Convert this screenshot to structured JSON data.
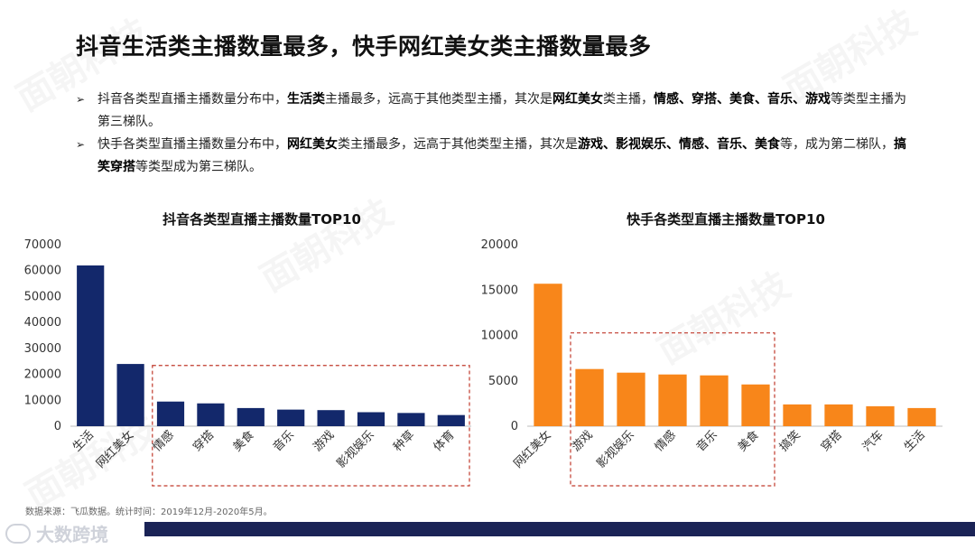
{
  "page": {
    "title": "抖音生活类主播数量最多，快手网红美女类主播数量最多",
    "bullets": [
      [
        {
          "t": "抖音各类型直播主播数量分布中，",
          "b": false
        },
        {
          "t": "生活类",
          "b": true
        },
        {
          "t": "主播最多，远高于其他类型主播，其次是",
          "b": false
        },
        {
          "t": "网红美女",
          "b": true
        },
        {
          "t": "类主播，",
          "b": false
        },
        {
          "t": "情感、穿搭、美食、音乐、游戏",
          "b": true
        },
        {
          "t": "等类型主播为第三梯队。",
          "b": false
        }
      ],
      [
        {
          "t": "快手各类型直播主播数量分布中，",
          "b": false
        },
        {
          "t": "网红美女",
          "b": true
        },
        {
          "t": "类主播最多，远高于其他类型主播，其次是",
          "b": false
        },
        {
          "t": "游戏、影视娱乐、情感、音乐、美食",
          "b": true
        },
        {
          "t": "等，成为第二梯队，",
          "b": false
        },
        {
          "t": "搞笑穿搭",
          "b": true
        },
        {
          "t": "等类型成为第三梯队。",
          "b": false
        }
      ]
    ],
    "bullet_marker": "➢",
    "source": "数据来源：飞瓜数据。统计时间：2019年12月-2020年5月。",
    "logo_text": "大数跨境",
    "watermark": "面朝科技"
  },
  "colors": {
    "douyin_bar": "#13286b",
    "kuaishou_bar": "#f8861a",
    "highlight_box": "#c0392b",
    "footer_bar": "#1a2356"
  },
  "chart_data": [
    {
      "type": "bar",
      "title": "抖音各类型直播主播数量TOP10",
      "categories": [
        "生活",
        "网红美女",
        "情感",
        "穿搭",
        "美食",
        "音乐",
        "游戏",
        "影视娱乐",
        "种草",
        "体育"
      ],
      "values": [
        62000,
        24000,
        9500,
        8800,
        7000,
        6400,
        6200,
        5400,
        5100,
        4300
      ],
      "ylim": [
        0,
        70000
      ],
      "yticks": [
        0,
        10000,
        20000,
        30000,
        40000,
        50000,
        60000,
        70000
      ],
      "highlight_range": [
        2,
        9
      ],
      "grid": false,
      "legend": "none"
    },
    {
      "type": "bar",
      "title": "快手各类型直播主播数量TOP10",
      "categories": [
        "网红美女",
        "游戏",
        "影视娱乐",
        "情感",
        "音乐",
        "美食",
        "搞笑",
        "穿搭",
        "汽车",
        "生活"
      ],
      "values": [
        15700,
        6300,
        5900,
        5700,
        5600,
        4600,
        2400,
        2400,
        2200,
        2000
      ],
      "ylim": [
        0,
        20000
      ],
      "yticks": [
        0,
        5000,
        10000,
        15000,
        20000
      ],
      "highlight_range": [
        1,
        5
      ],
      "grid": false,
      "legend": "none"
    }
  ]
}
